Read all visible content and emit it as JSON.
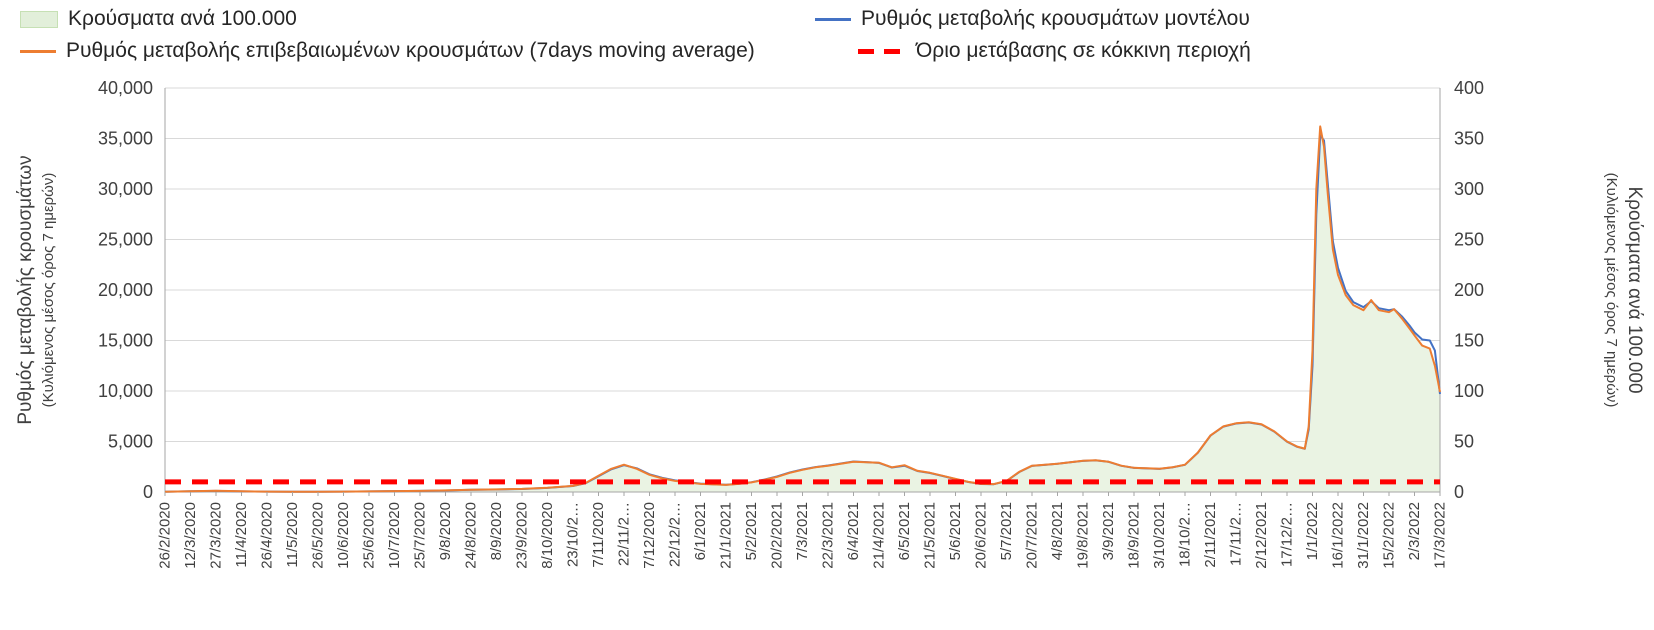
{
  "legend": {
    "items": [
      {
        "label": "Κρούσματα ανά 100.000",
        "marker": "area-swatch",
        "color": "#E2EFDA",
        "border": "#C6E0B4"
      },
      {
        "label": "Ρυθμός μεταβολής κρουσμάτων μοντέλου",
        "marker": "line",
        "color": "#4472C4"
      },
      {
        "label": "Ρυθμός μεταβολής επιβεβαιωμένων κρουσμάτων (7days moving average)",
        "marker": "line",
        "color": "#ED7D31"
      },
      {
        "label": "Όριο μετάβασης σε κόκκινη περιοχή",
        "marker": "dashed-line",
        "color": "#FF0000"
      }
    ]
  },
  "chart_data": {
    "type": "line",
    "title": "",
    "grid": "horizontal",
    "legend_position": "top",
    "colors": {
      "grid": "#D9D9D9",
      "axis": "#A6A6A6",
      "text": "#404040"
    },
    "left_axis": {
      "title": "Ρυθμός μεταβολής κρουσμάτων",
      "subtitle": "(Κυλιόμενος μέσος όρος 7 ημερών)",
      "min": 0,
      "max": 40000,
      "tick_values": [
        0,
        5000,
        10000,
        15000,
        20000,
        25000,
        30000,
        35000,
        40000
      ],
      "tick_labels": [
        "0",
        "5,000",
        "10,000",
        "15,000",
        "20,000",
        "25,000",
        "30,000",
        "35,000",
        "40,000"
      ]
    },
    "right_axis": {
      "title": "Κρούσματα ανά 100.000",
      "subtitle": "(Κυλιόμενος μέσος όρος 7 ημερών)",
      "min": 0,
      "max": 400,
      "tick_values": [
        0,
        50,
        100,
        150,
        200,
        250,
        300,
        350,
        400
      ],
      "tick_labels": [
        "0",
        "50",
        "100",
        "150",
        "200",
        "250",
        "300",
        "350",
        "400"
      ]
    },
    "x_tick_labels": [
      "26/2/2020",
      "12/3/2020",
      "27/3/2020",
      "11/4/2020",
      "26/4/2020",
      "11/5/2020",
      "26/5/2020",
      "10/6/2020",
      "25/6/2020",
      "10/7/2020",
      "25/7/2020",
      "9/8/2020",
      "24/8/2020",
      "8/9/2020",
      "23/9/2020",
      "8/10/2020",
      "23/10/2…",
      "7/11/2020",
      "22/11/2…",
      "7/12/2020",
      "22/12/2…",
      "6/1/2021",
      "21/1/2021",
      "5/2/2021",
      "20/2/2021",
      "7/3/2021",
      "22/3/2021",
      "6/4/2021",
      "21/4/2021",
      "6/5/2021",
      "21/5/2021",
      "5/6/2021",
      "20/6/2021",
      "5/7/2021",
      "20/7/2021",
      "4/8/2021",
      "19/8/2021",
      "3/9/2021",
      "18/9/2021",
      "3/10/2021",
      "18/10/2…",
      "2/11/2021",
      "17/11/2…",
      "2/12/2021",
      "17/12/2…",
      "1/1/2022",
      "16/1/2022",
      "31/1/2022",
      "15/2/2022",
      "2/3/2022",
      "17/3/2022"
    ],
    "area": {
      "label": "Κρούσματα ανά 100.000",
      "axis": "right",
      "fill": "#EAF3E3",
      "stroke": "#C6E0B4"
    },
    "threshold": {
      "label": "Όριο μετάβασης σε κόκκινη περιοχή",
      "value_left_axis": 1000,
      "value_right_axis": 10,
      "color": "#FF0000"
    },
    "series": [
      {
        "id": "model",
        "name": "Ρυθμός μεταβολής κρουσμάτων μοντέλου",
        "color": "#4472C4",
        "points": [
          [
            0,
            15
          ],
          [
            1,
            70
          ],
          [
            2,
            105
          ],
          [
            3,
            60
          ],
          [
            4,
            35
          ],
          [
            5,
            25
          ],
          [
            6,
            25
          ],
          [
            7,
            35
          ],
          [
            8,
            55
          ],
          [
            9,
            85
          ],
          [
            10,
            105
          ],
          [
            11,
            150
          ],
          [
            12,
            220
          ],
          [
            13,
            250
          ],
          [
            14,
            300
          ],
          [
            15,
            410
          ],
          [
            16,
            590
          ],
          [
            16.5,
            880
          ],
          [
            17,
            1550
          ],
          [
            17.5,
            2250
          ],
          [
            18,
            2650
          ],
          [
            18.5,
            2350
          ],
          [
            19,
            1750
          ],
          [
            19.5,
            1400
          ],
          [
            20,
            1150
          ],
          [
            20.5,
            980
          ],
          [
            21,
            830
          ],
          [
            21.5,
            770
          ],
          [
            22,
            720
          ],
          [
            22.5,
            820
          ],
          [
            23,
            970
          ],
          [
            23.5,
            1230
          ],
          [
            24,
            1530
          ],
          [
            24.5,
            1930
          ],
          [
            25,
            2230
          ],
          [
            25.5,
            2470
          ],
          [
            26,
            2620
          ],
          [
            26.5,
            2820
          ],
          [
            27,
            3020
          ],
          [
            27.5,
            2960
          ],
          [
            28,
            2880
          ],
          [
            28.5,
            2430
          ],
          [
            29,
            2600
          ],
          [
            29.5,
            2080
          ],
          [
            30,
            1880
          ],
          [
            30.5,
            1580
          ],
          [
            31,
            1280
          ],
          [
            31.5,
            990
          ],
          [
            32,
            790
          ],
          [
            32.5,
            770
          ],
          [
            33,
            1080
          ],
          [
            33.5,
            1980
          ],
          [
            34,
            2580
          ],
          [
            34.5,
            2680
          ],
          [
            35,
            2790
          ],
          [
            35.5,
            2940
          ],
          [
            36,
            3080
          ],
          [
            36.5,
            3130
          ],
          [
            37,
            2990
          ],
          [
            37.5,
            2590
          ],
          [
            38,
            2390
          ],
          [
            38.5,
            2340
          ],
          [
            39,
            2290
          ],
          [
            39.5,
            2440
          ],
          [
            40,
            2690
          ],
          [
            40.5,
            3880
          ],
          [
            41,
            5580
          ],
          [
            41.5,
            6480
          ],
          [
            42,
            6780
          ],
          [
            42.5,
            6880
          ],
          [
            43,
            6680
          ],
          [
            43.5,
            5980
          ],
          [
            44,
            4980
          ],
          [
            44.4,
            4480
          ],
          [
            44.7,
            4280
          ],
          [
            44.85,
            6200
          ],
          [
            45,
            12500
          ],
          [
            45.15,
            27500
          ],
          [
            45.3,
            35300
          ],
          [
            45.45,
            34800
          ],
          [
            45.6,
            30500
          ],
          [
            45.8,
            24800
          ],
          [
            46,
            22200
          ],
          [
            46.3,
            19900
          ],
          [
            46.6,
            18800
          ],
          [
            47,
            18300
          ],
          [
            47.3,
            18900
          ],
          [
            47.6,
            18200
          ],
          [
            48,
            18000
          ],
          [
            48.2,
            18100
          ],
          [
            48.5,
            17400
          ],
          [
            48.8,
            16500
          ],
          [
            49,
            15800
          ],
          [
            49.3,
            15100
          ],
          [
            49.6,
            15000
          ],
          [
            49.8,
            14000
          ],
          [
            50,
            9700
          ]
        ]
      },
      {
        "id": "confirmed",
        "name": "Ρυθμός μεταβολής επιβεβαιωμένων κρουσμάτων (7days moving average)",
        "color": "#ED7D31",
        "points": [
          [
            0,
            20
          ],
          [
            1,
            80
          ],
          [
            2,
            120
          ],
          [
            3,
            70
          ],
          [
            4,
            40
          ],
          [
            5,
            30
          ],
          [
            6,
            30
          ],
          [
            7,
            40
          ],
          [
            8,
            60
          ],
          [
            9,
            90
          ],
          [
            10,
            110
          ],
          [
            11,
            160
          ],
          [
            12,
            230
          ],
          [
            13,
            260
          ],
          [
            14,
            310
          ],
          [
            15,
            420
          ],
          [
            16,
            600
          ],
          [
            16.5,
            900
          ],
          [
            17,
            1600
          ],
          [
            17.5,
            2300
          ],
          [
            18,
            2700
          ],
          [
            18.5,
            2300
          ],
          [
            19,
            1700
          ],
          [
            19.5,
            1350
          ],
          [
            20,
            1100
          ],
          [
            20.5,
            950
          ],
          [
            21,
            800
          ],
          [
            21.5,
            750
          ],
          [
            22,
            700
          ],
          [
            22.5,
            800
          ],
          [
            23,
            950
          ],
          [
            23.5,
            1200
          ],
          [
            24,
            1500
          ],
          [
            24.5,
            1900
          ],
          [
            25,
            2200
          ],
          [
            25.5,
            2450
          ],
          [
            26,
            2600
          ],
          [
            26.5,
            2800
          ],
          [
            27,
            3000
          ],
          [
            27.5,
            2950
          ],
          [
            28,
            2900
          ],
          [
            28.5,
            2450
          ],
          [
            29,
            2650
          ],
          [
            29.5,
            2100
          ],
          [
            30,
            1900
          ],
          [
            30.5,
            1600
          ],
          [
            31,
            1300
          ],
          [
            31.5,
            1000
          ],
          [
            32,
            800
          ],
          [
            32.5,
            780
          ],
          [
            33,
            1100
          ],
          [
            33.5,
            2000
          ],
          [
            34,
            2600
          ],
          [
            34.5,
            2700
          ],
          [
            35,
            2800
          ],
          [
            35.5,
            2950
          ],
          [
            36,
            3100
          ],
          [
            36.5,
            3150
          ],
          [
            37,
            3000
          ],
          [
            37.5,
            2600
          ],
          [
            38,
            2400
          ],
          [
            38.5,
            2350
          ],
          [
            39,
            2300
          ],
          [
            39.5,
            2450
          ],
          [
            40,
            2700
          ],
          [
            40.5,
            3900
          ],
          [
            41,
            5600
          ],
          [
            41.5,
            6500
          ],
          [
            42,
            6800
          ],
          [
            42.5,
            6900
          ],
          [
            43,
            6700
          ],
          [
            43.5,
            6000
          ],
          [
            44,
            5000
          ],
          [
            44.4,
            4500
          ],
          [
            44.7,
            4300
          ],
          [
            44.85,
            6500
          ],
          [
            45,
            14000
          ],
          [
            45.15,
            30000
          ],
          [
            45.3,
            36200
          ],
          [
            45.45,
            34200
          ],
          [
            45.6,
            29500
          ],
          [
            45.8,
            24000
          ],
          [
            46,
            21500
          ],
          [
            46.3,
            19500
          ],
          [
            46.6,
            18500
          ],
          [
            47,
            18000
          ],
          [
            47.3,
            19000
          ],
          [
            47.6,
            18000
          ],
          [
            48,
            17800
          ],
          [
            48.2,
            18100
          ],
          [
            48.5,
            17200
          ],
          [
            48.8,
            16200
          ],
          [
            49,
            15500
          ],
          [
            49.3,
            14500
          ],
          [
            49.6,
            14200
          ],
          [
            49.8,
            12500
          ],
          [
            50,
            9900
          ]
        ]
      }
    ]
  }
}
